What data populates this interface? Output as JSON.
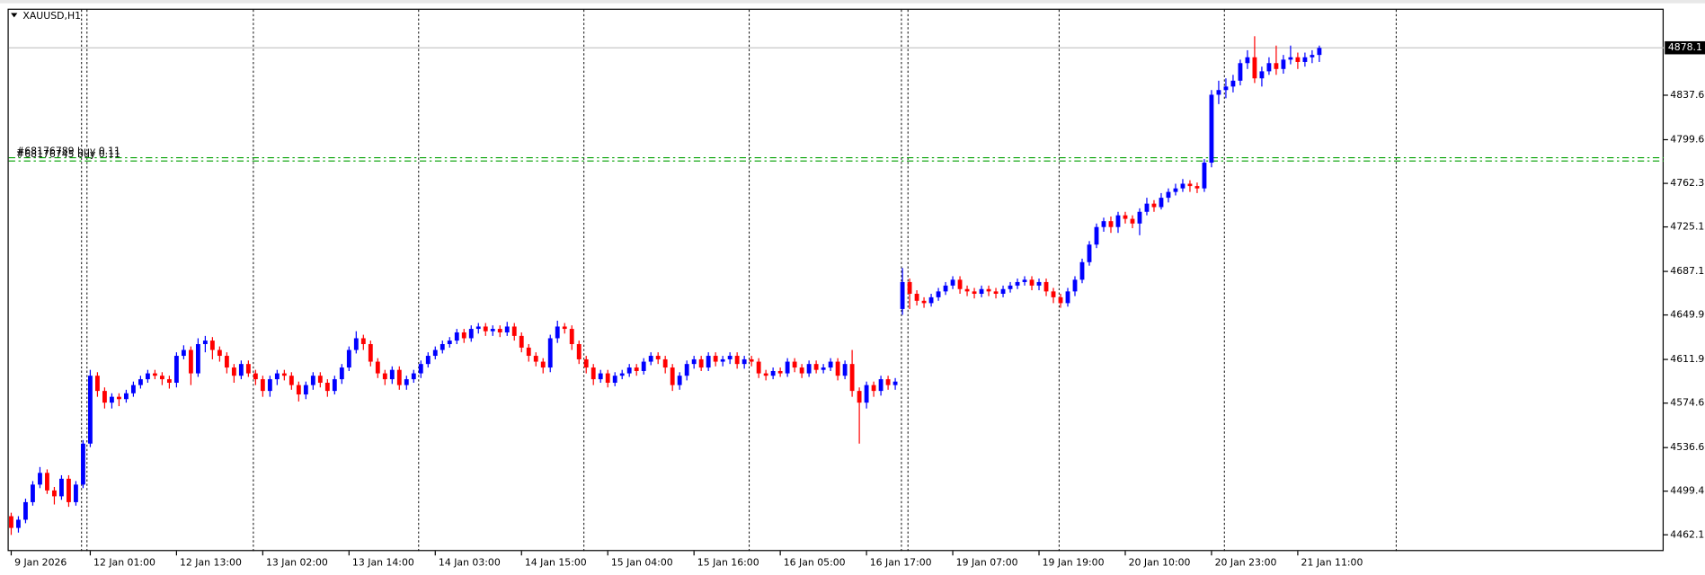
{
  "chart_data": {
    "type": "candlestick",
    "title": "XAUUSD,H1",
    "categories": [
      "9 Jan 2026",
      null,
      null,
      null,
      null,
      null,
      null,
      null,
      null,
      null,
      null,
      "12 Jan 01:00",
      null,
      null,
      null,
      null,
      null,
      null,
      null,
      null,
      null,
      null,
      null,
      "12 Jan 13:00",
      null,
      null,
      null,
      null,
      null,
      null,
      null,
      null,
      null,
      null,
      null,
      "13 Jan 02:00",
      null,
      null,
      null,
      null,
      null,
      null,
      null,
      null,
      null,
      null,
      null,
      "13 Jan 14:00",
      null,
      null,
      null,
      null,
      null,
      null,
      null,
      null,
      null,
      null,
      null,
      "14 Jan 03:00",
      null,
      null,
      null,
      null,
      null,
      null,
      null,
      null,
      null,
      null,
      null,
      "14 Jan 15:00",
      null,
      null,
      null,
      null,
      null,
      null,
      null,
      null,
      null,
      null,
      null,
      "15 Jan 04:00",
      null,
      null,
      null,
      null,
      null,
      null,
      null,
      null,
      null,
      null,
      null,
      "15 Jan 16:00",
      null,
      null,
      null,
      null,
      null,
      null,
      null,
      null,
      null,
      null,
      null,
      "16 Jan 05:00",
      null,
      null,
      null,
      null,
      null,
      null,
      null,
      null,
      null,
      null,
      null,
      "16 Jan 17:00",
      null,
      null,
      null,
      null,
      null,
      null,
      null,
      null,
      null,
      null,
      null,
      "19 Jan 07:00",
      null,
      null,
      null,
      null,
      null,
      null,
      null,
      null,
      null,
      null,
      null,
      "19 Jan 19:00",
      null,
      null,
      null,
      null,
      null,
      null,
      null,
      null,
      null,
      null,
      null,
      "20 Jan 10:00",
      null,
      null,
      null,
      null,
      null,
      null,
      null,
      null,
      null,
      null,
      null,
      "20 Jan 23:00",
      null,
      null,
      null,
      null,
      null,
      null,
      null,
      null,
      null,
      null,
      null,
      "21 Jan 11:00",
      null,
      null,
      null
    ],
    "open": [
      4478,
      4468,
      4475,
      4490,
      4505,
      4515,
      4500,
      4495,
      4510,
      4490,
      4505,
      4540,
      4598,
      4585,
      4575,
      4580,
      4578,
      4583,
      4590,
      4595,
      4600,
      4598,
      4595,
      4592,
      4615,
      4620,
      4600,
      4625,
      4628,
      4620,
      4615,
      4605,
      4598,
      4608,
      4600,
      4595,
      4585,
      4595,
      4600,
      4598,
      4590,
      4582,
      4590,
      4598,
      4592,
      4585,
      4595,
      4605,
      4620,
      4630,
      4625,
      4610,
      4600,
      4595,
      4603,
      4590,
      4595,
      4600,
      4608,
      4615,
      4620,
      4625,
      4628,
      4635,
      4630,
      4638,
      4640,
      4636,
      4638,
      4635,
      4640,
      4632,
      4622,
      4615,
      4610,
      4605,
      4630,
      4640,
      4638,
      4625,
      4612,
      4605,
      4595,
      4600,
      4592,
      4598,
      4600,
      4605,
      4602,
      4610,
      4615,
      4612,
      4605,
      4590,
      4598,
      4608,
      4612,
      4605,
      4615,
      4610,
      4612,
      4615,
      4608,
      4612,
      4610,
      4600,
      4598,
      4602,
      4600,
      4610,
      4605,
      4600,
      4608,
      4603,
      4605,
      4610,
      4598,
      4608,
      4585,
      4575,
      4590,
      4585,
      4595,
      4590,
      4655,
      4678,
      4668,
      4662,
      4660,
      4665,
      4670,
      4675,
      4680,
      4672,
      4670,
      4668,
      4672,
      4670,
      4668,
      4672,
      4675,
      4678,
      4680,
      4675,
      4678,
      4670,
      4665,
      4660,
      4670,
      4680,
      4695,
      4710,
      4725,
      4730,
      4725,
      4735,
      4732,
      4728,
      4738,
      4745,
      4742,
      4750,
      4755,
      4758,
      4762,
      4760,
      4758,
      4780,
      4838,
      4842,
      4845,
      4850,
      4865,
      4870,
      4852,
      4858,
      4865,
      4860,
      4868,
      4870,
      4866,
      4870,
      4872
    ],
    "high": [
      4481,
      4478,
      4493,
      4508,
      4520,
      4518,
      4503,
      4513,
      4513,
      4508,
      4543,
      4603,
      4601,
      4588,
      4583,
      4583,
      4586,
      4593,
      4598,
      4603,
      4603,
      4601,
      4598,
      4618,
      4624,
      4623,
      4630,
      4632,
      4631,
      4623,
      4618,
      4608,
      4611,
      4611,
      4603,
      4598,
      4598,
      4603,
      4603,
      4601,
      4593,
      4593,
      4601,
      4601,
      4595,
      4598,
      4608,
      4623,
      4636,
      4633,
      4628,
      4613,
      4603,
      4606,
      4606,
      4598,
      4603,
      4611,
      4618,
      4623,
      4628,
      4631,
      4638,
      4638,
      4641,
      4643,
      4643,
      4641,
      4641,
      4644,
      4643,
      4635,
      4625,
      4618,
      4613,
      4633,
      4645,
      4643,
      4641,
      4628,
      4615,
      4608,
      4603,
      4603,
      4601,
      4603,
      4608,
      4608,
      4613,
      4618,
      4618,
      4615,
      4608,
      4601,
      4611,
      4615,
      4615,
      4618,
      4618,
      4615,
      4618,
      4618,
      4615,
      4615,
      4613,
      4603,
      4605,
      4605,
      4613,
      4613,
      4608,
      4611,
      4611,
      4608,
      4613,
      4613,
      4611,
      4620,
      4588,
      4593,
      4593,
      4598,
      4598,
      4596,
      4690,
      4681,
      4671,
      4665,
      4668,
      4673,
      4678,
      4683,
      4683,
      4675,
      4673,
      4675,
      4675,
      4673,
      4675,
      4678,
      4681,
      4683,
      4683,
      4681,
      4681,
      4673,
      4668,
      4673,
      4683,
      4698,
      4713,
      4728,
      4733,
      4734,
      4738,
      4738,
      4735,
      4741,
      4750,
      4748,
      4754,
      4758,
      4762,
      4766,
      4765,
      4763,
      4783,
      4842,
      4850,
      4852,
      4855,
      4868,
      4876,
      4888,
      4862,
      4870,
      4880,
      4872,
      4880,
      4874,
      4874,
      4876,
      4880
    ],
    "low": [
      4462,
      4464,
      4472,
      4487,
      4502,
      4497,
      4488,
      4492,
      4486,
      4487,
      4502,
      4537,
      4580,
      4570,
      4570,
      4572,
      4575,
      4580,
      4587,
      4592,
      4595,
      4590,
      4587,
      4588,
      4612,
      4590,
      4597,
      4618,
      4612,
      4610,
      4600,
      4592,
      4595,
      4597,
      4590,
      4580,
      4580,
      4590,
      4594,
      4586,
      4576,
      4578,
      4586,
      4588,
      4580,
      4582,
      4591,
      4602,
      4617,
      4620,
      4606,
      4596,
      4590,
      4591,
      4586,
      4586,
      4592,
      4596,
      4605,
      4612,
      4617,
      4622,
      4625,
      4626,
      4627,
      4634,
      4632,
      4632,
      4631,
      4632,
      4628,
      4618,
      4610,
      4606,
      4600,
      4601,
      4626,
      4634,
      4620,
      4608,
      4600,
      4590,
      4592,
      4588,
      4589,
      4595,
      4597,
      4598,
      4599,
      4607,
      4608,
      4600,
      4585,
      4586,
      4594,
      4604,
      4602,
      4602,
      4606,
      4606,
      4608,
      4604,
      4604,
      4606,
      4596,
      4594,
      4595,
      4597,
      4597,
      4601,
      4596,
      4597,
      4600,
      4600,
      4602,
      4594,
      4595,
      4580,
      4540,
      4570,
      4580,
      4581,
      4586,
      4586,
      4650,
      4655,
      4658,
      4656,
      4657,
      4662,
      4667,
      4672,
      4668,
      4666,
      4664,
      4665,
      4666,
      4664,
      4665,
      4669,
      4672,
      4675,
      4671,
      4671,
      4666,
      4660,
      4656,
      4657,
      4666,
      4677,
      4692,
      4707,
      4721,
      4720,
      4720,
      4728,
      4724,
      4718,
      4735,
      4738,
      4740,
      4746,
      4752,
      4755,
      4755,
      4754,
      4755,
      4776,
      4830,
      4835,
      4840,
      4846,
      4860,
      4848,
      4845,
      4855,
      4855,
      4856,
      4864,
      4860,
      4862,
      4865,
      4866
    ],
    "close": [
      4468,
      4475,
      4490,
      4505,
      4515,
      4500,
      4495,
      4510,
      4490,
      4505,
      4540,
      4598,
      4585,
      4575,
      4580,
      4578,
      4583,
      4590,
      4595,
      4600,
      4598,
      4595,
      4592,
      4615,
      4620,
      4600,
      4625,
      4628,
      4620,
      4615,
      4605,
      4598,
      4608,
      4600,
      4595,
      4585,
      4595,
      4600,
      4598,
      4590,
      4582,
      4590,
      4598,
      4592,
      4585,
      4595,
      4605,
      4620,
      4630,
      4625,
      4610,
      4600,
      4595,
      4603,
      4590,
      4595,
      4600,
      4608,
      4615,
      4620,
      4625,
      4628,
      4635,
      4630,
      4638,
      4640,
      4636,
      4638,
      4635,
      4640,
      4632,
      4622,
      4615,
      4610,
      4605,
      4630,
      4640,
      4638,
      4625,
      4612,
      4605,
      4595,
      4600,
      4592,
      4598,
      4600,
      4605,
      4602,
      4610,
      4615,
      4612,
      4605,
      4590,
      4598,
      4608,
      4612,
      4605,
      4615,
      4610,
      4612,
      4615,
      4608,
      4612,
      4610,
      4600,
      4598,
      4602,
      4600,
      4610,
      4605,
      4600,
      4608,
      4603,
      4605,
      4610,
      4598,
      4608,
      4585,
      4575,
      4590,
      4585,
      4595,
      4590,
      4593,
      4678,
      4668,
      4662,
      4660,
      4665,
      4670,
      4675,
      4680,
      4672,
      4670,
      4668,
      4672,
      4670,
      4668,
      4672,
      4675,
      4678,
      4680,
      4675,
      4678,
      4670,
      4665,
      4660,
      4670,
      4680,
      4695,
      4710,
      4725,
      4730,
      4725,
      4735,
      4732,
      4728,
      4738,
      4745,
      4742,
      4750,
      4755,
      4758,
      4762,
      4760,
      4758,
      4780,
      4838,
      4842,
      4845,
      4850,
      4865,
      4870,
      4852,
      4858,
      4865,
      4860,
      4868,
      4870,
      4866,
      4870,
      4872,
      4878
    ],
    "up_color": "#0000ff",
    "down_color": "#ff0000",
    "ylim": [
      4448.2,
      4911.5
    ],
    "yticks": [
      4462.1,
      4499.4,
      4536.6,
      4574.6,
      4611.9,
      4649.9,
      4687.1,
      4725.1,
      4762.3,
      4799.6,
      4837.6
    ],
    "bid": 4878.1,
    "orders": [
      {
        "label": "#68176789 buy 0.11",
        "price": 4784.2
      },
      {
        "label": "#68176745 buy 0.11",
        "price": 4781.4
      }
    ],
    "order_color": "#00a000",
    "period_separators": true
  }
}
